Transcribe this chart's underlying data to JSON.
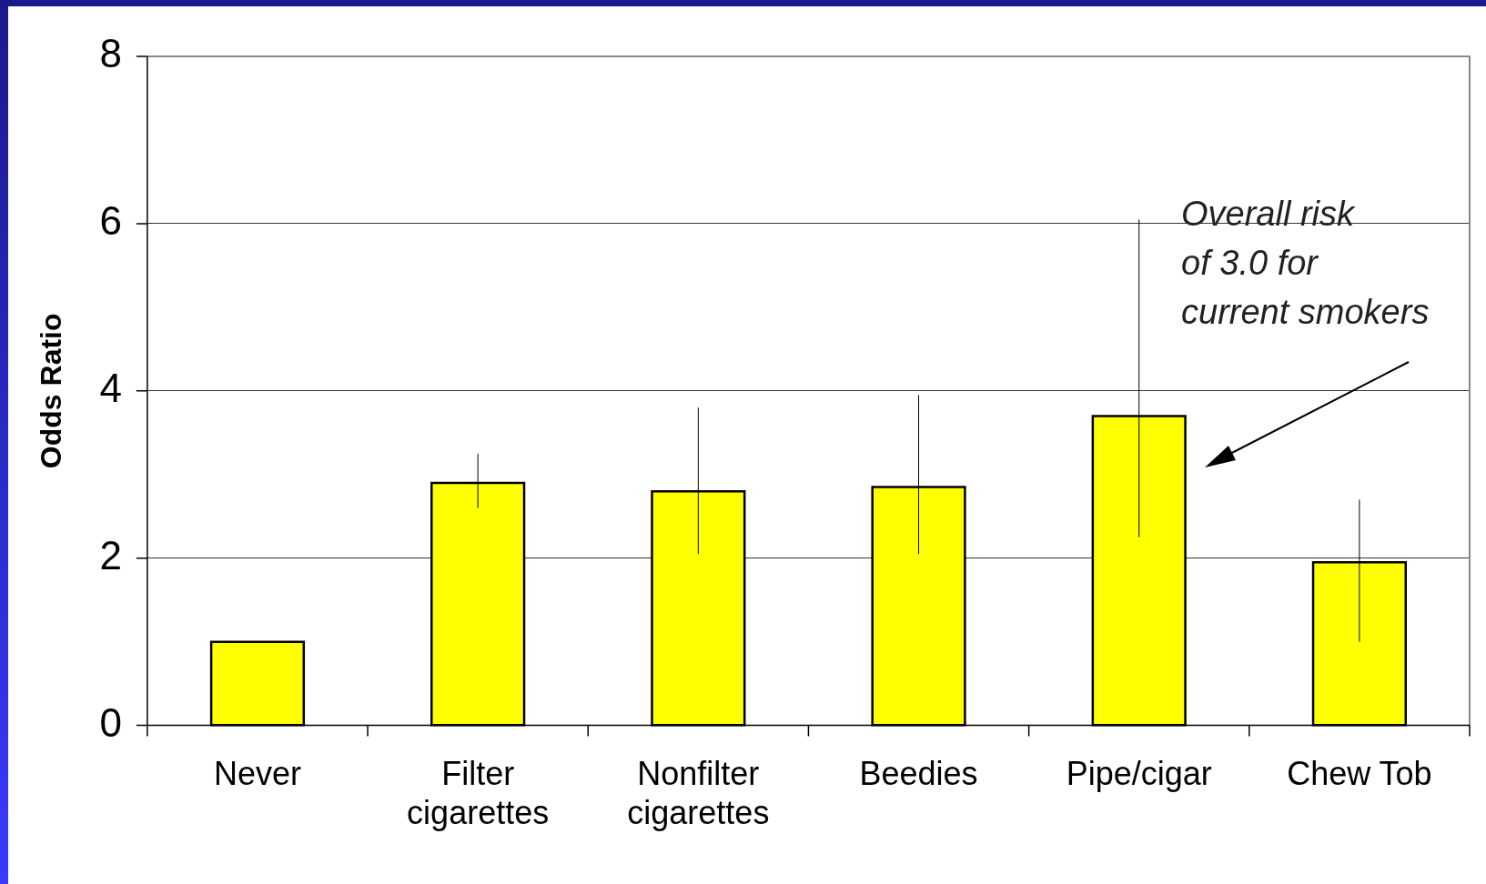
{
  "chart_data": {
    "type": "bar",
    "ylabel": "Odds Ratio",
    "categories": [
      "Never",
      "Filter\ncigarettes",
      "Nonfilter\ncigarettes",
      "Beedies",
      "Pipe/cigar",
      "Chew Tob"
    ],
    "values": [
      1.0,
      2.9,
      2.8,
      2.85,
      3.7,
      1.95
    ],
    "errors": [
      null,
      [
        2.6,
        3.25
      ],
      [
        2.05,
        3.8
      ],
      [
        2.05,
        3.95
      ],
      [
        2.25,
        6.05
      ],
      [
        1.0,
        2.7
      ]
    ],
    "color": "#ffff00",
    "ylim": [
      0,
      8
    ],
    "yticks": [
      0,
      2,
      4,
      6,
      8
    ],
    "grid": "y",
    "annotations": [
      "Overall risk\nof 3.0 for\ncurrent smokers"
    ]
  }
}
